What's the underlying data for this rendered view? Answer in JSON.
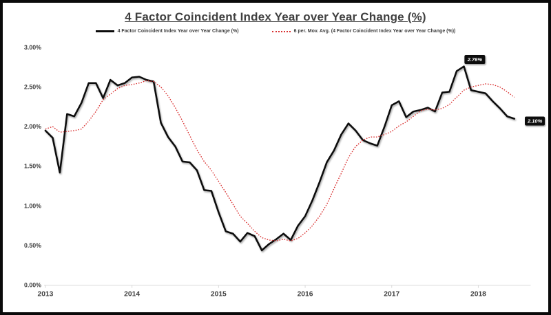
{
  "window": {
    "background": "#ffffff",
    "border_color": "#0a0a0a"
  },
  "chart_data": {
    "type": "line",
    "title": "4 Factor Coincident Index Year over Year Change (%)",
    "title_color": "#404040",
    "x_start": "2013-01",
    "x_end": "2018-06",
    "x_tick_labels": [
      "2013",
      "2014",
      "2015",
      "2016",
      "2017",
      "2018"
    ],
    "y_tick_labels": [
      "3.00%",
      "2.50%",
      "2.00%",
      "1.50%",
      "1.00%",
      "0.50%",
      "0.00%"
    ],
    "y_tick_values": [
      3.0,
      2.5,
      2.0,
      1.5,
      1.0,
      0.5,
      0.0
    ],
    "ylim": [
      0,
      3
    ],
    "grid": false,
    "legend_position": "top",
    "axis_color": "#d9d9d9",
    "tick_label_color": "#404040",
    "series": [
      {
        "name": "4 Factor Coincident Index Year over Year Change (%)",
        "color": "#0b0b0b",
        "style": "solid",
        "values": [
          1.95,
          1.86,
          1.42,
          2.16,
          2.13,
          2.3,
          2.55,
          2.55,
          2.36,
          2.59,
          2.52,
          2.55,
          2.62,
          2.63,
          2.59,
          2.57,
          2.05,
          1.87,
          1.75,
          1.56,
          1.55,
          1.45,
          1.2,
          1.19,
          0.92,
          0.68,
          0.65,
          0.55,
          0.66,
          0.62,
          0.44,
          0.52,
          0.58,
          0.65,
          0.57,
          0.75,
          0.87,
          1.07,
          1.3,
          1.55,
          1.7,
          1.9,
          2.04,
          1.95,
          1.83,
          1.79,
          1.76,
          2.0,
          2.27,
          2.32,
          2.12,
          2.19,
          2.21,
          2.24,
          2.19,
          2.43,
          2.44,
          2.7,
          2.76,
          2.46,
          2.44,
          2.42,
          2.32,
          2.23,
          2.13,
          2.1
        ]
      },
      {
        "name": "6 per. Mov. Avg. (4 Factor Coincident Index Year over Year Change (%))",
        "color": "#d92f2f",
        "style": "dotted",
        "values": [
          1.97,
          2.0,
          1.93,
          1.94,
          1.95,
          1.97,
          2.07,
          2.19,
          2.34,
          2.41,
          2.48,
          2.52,
          2.53,
          2.55,
          2.58,
          2.57,
          2.5,
          2.39,
          2.24,
          2.07,
          1.89,
          1.71,
          1.56,
          1.45,
          1.31,
          1.17,
          1.02,
          0.87,
          0.78,
          0.68,
          0.6,
          0.57,
          0.56,
          0.58,
          0.56,
          0.59,
          0.66,
          0.75,
          0.87,
          1.02,
          1.22,
          1.41,
          1.61,
          1.75,
          1.83,
          1.87,
          1.87,
          1.9,
          1.94,
          2.01,
          2.06,
          2.13,
          2.2,
          2.22,
          2.21,
          2.23,
          2.28,
          2.37,
          2.46,
          2.5,
          2.52,
          2.54,
          2.53,
          2.5,
          2.44,
          2.37
        ]
      }
    ],
    "annotations": [
      {
        "label": "2.76%",
        "series": 0,
        "point_index": 58,
        "placement": "above"
      },
      {
        "label": "2.10%",
        "series": 0,
        "point_index": 65,
        "placement": "right"
      }
    ]
  }
}
